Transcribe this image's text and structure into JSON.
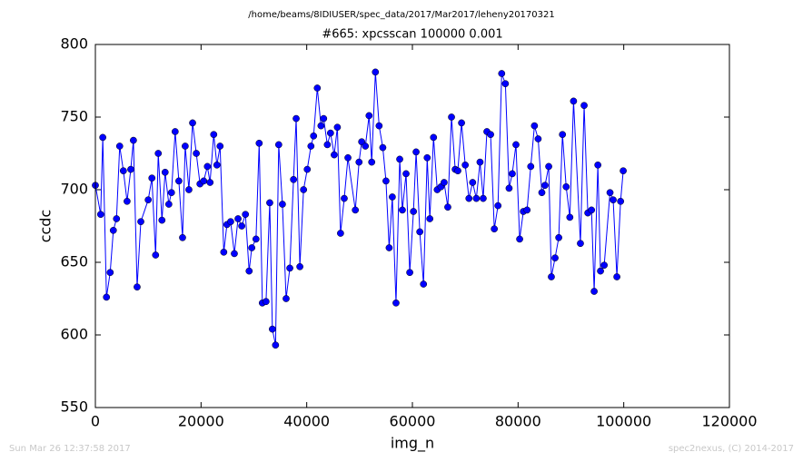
{
  "chart_data": {
    "type": "line",
    "suptitle": "/home/beams/8IDIUSER/spec_data/2017/Mar2017/leheny20170321",
    "title": "#665: xpcsscan 100000 0.001",
    "xlabel": "img_n",
    "ylabel": "ccdc",
    "footer_left": "Sun Mar 26 12:37:58 2017",
    "footer_right": "spec2nexus, (C) 2014-2017",
    "xlim": [
      0,
      120000
    ],
    "ylim": [
      550,
      800
    ],
    "xticks": [
      0,
      20000,
      40000,
      60000,
      80000,
      100000,
      120000
    ],
    "yticks": [
      550,
      600,
      650,
      700,
      750,
      800
    ],
    "grid": false,
    "series": [
      {
        "color": "#0000ff",
        "x": [
          0,
          1000,
          1400,
          2100,
          2800,
          3400,
          4000,
          4600,
          5300,
          6000,
          6700,
          7200,
          7900,
          8600,
          10000,
          10700,
          11400,
          11900,
          12600,
          13200,
          13900,
          14400,
          15100,
          15800,
          16500,
          17000,
          17700,
          18400,
          19100,
          19800,
          20500,
          21200,
          21700,
          22400,
          23000,
          23600,
          24300,
          24900,
          25600,
          26300,
          27000,
          27700,
          28400,
          29100,
          29600,
          30400,
          31000,
          31600,
          32300,
          33000,
          33500,
          34100,
          34700,
          35400,
          36100,
          36800,
          37500,
          38000,
          38700,
          39400,
          40100,
          40800,
          41300,
          42000,
          42700,
          43200,
          43900,
          44500,
          45200,
          45800,
          46400,
          47100,
          47800,
          49200,
          49900,
          50400,
          51100,
          51800,
          52300,
          53000,
          53700,
          54400,
          55000,
          55600,
          56200,
          56900,
          57600,
          58100,
          58800,
          59500,
          60200,
          60700,
          61400,
          62100,
          62800,
          63300,
          64000,
          64700,
          65400,
          66000,
          66700,
          67400,
          68100,
          68600,
          69300,
          70000,
          70700,
          71400,
          72100,
          72800,
          73400,
          74100,
          74800,
          75500,
          76200,
          76900,
          77600,
          78300,
          78900,
          79600,
          80300,
          81000,
          81700,
          82400,
          83100,
          83800,
          84500,
          85100,
          85800,
          86300,
          87000,
          87700,
          88400,
          89100,
          89800,
          90500,
          91800,
          92500,
          93200,
          93900,
          94400,
          95100,
          95600,
          96300,
          97400,
          98000,
          98700,
          99400,
          99900
        ],
        "values": [
          703,
          683,
          736,
          626,
          643,
          672,
          680,
          730,
          713,
          692,
          714,
          734,
          633,
          678,
          693,
          708,
          655,
          725,
          679,
          712,
          690,
          698,
          740,
          706,
          667,
          730,
          700,
          746,
          725,
          704,
          706,
          716,
          705,
          738,
          717,
          730,
          657,
          676,
          678,
          656,
          680,
          675,
          683,
          644,
          660,
          666,
          732,
          622,
          623,
          691,
          604,
          593,
          731,
          690,
          625,
          646,
          707,
          749,
          647,
          700,
          714,
          730,
          737,
          770,
          744,
          749,
          731,
          739,
          724,
          743,
          670,
          694,
          722,
          686,
          719,
          733,
          730,
          751,
          719,
          781,
          744,
          729,
          706,
          660,
          695,
          622,
          721,
          686,
          711,
          643,
          685,
          726,
          671,
          635,
          722,
          680,
          736,
          700,
          702,
          705,
          688,
          750,
          714,
          713,
          746,
          717,
          694,
          705,
          694,
          719,
          694,
          740,
          738,
          673,
          689,
          780,
          773,
          701,
          711,
          731,
          666,
          685,
          686,
          716,
          744,
          735,
          698,
          703,
          716,
          640,
          653,
          667,
          738,
          702,
          681,
          761,
          663,
          758,
          684,
          686,
          630,
          717,
          644,
          648,
          698,
          693,
          640,
          692,
          713
        ]
      }
    ]
  }
}
